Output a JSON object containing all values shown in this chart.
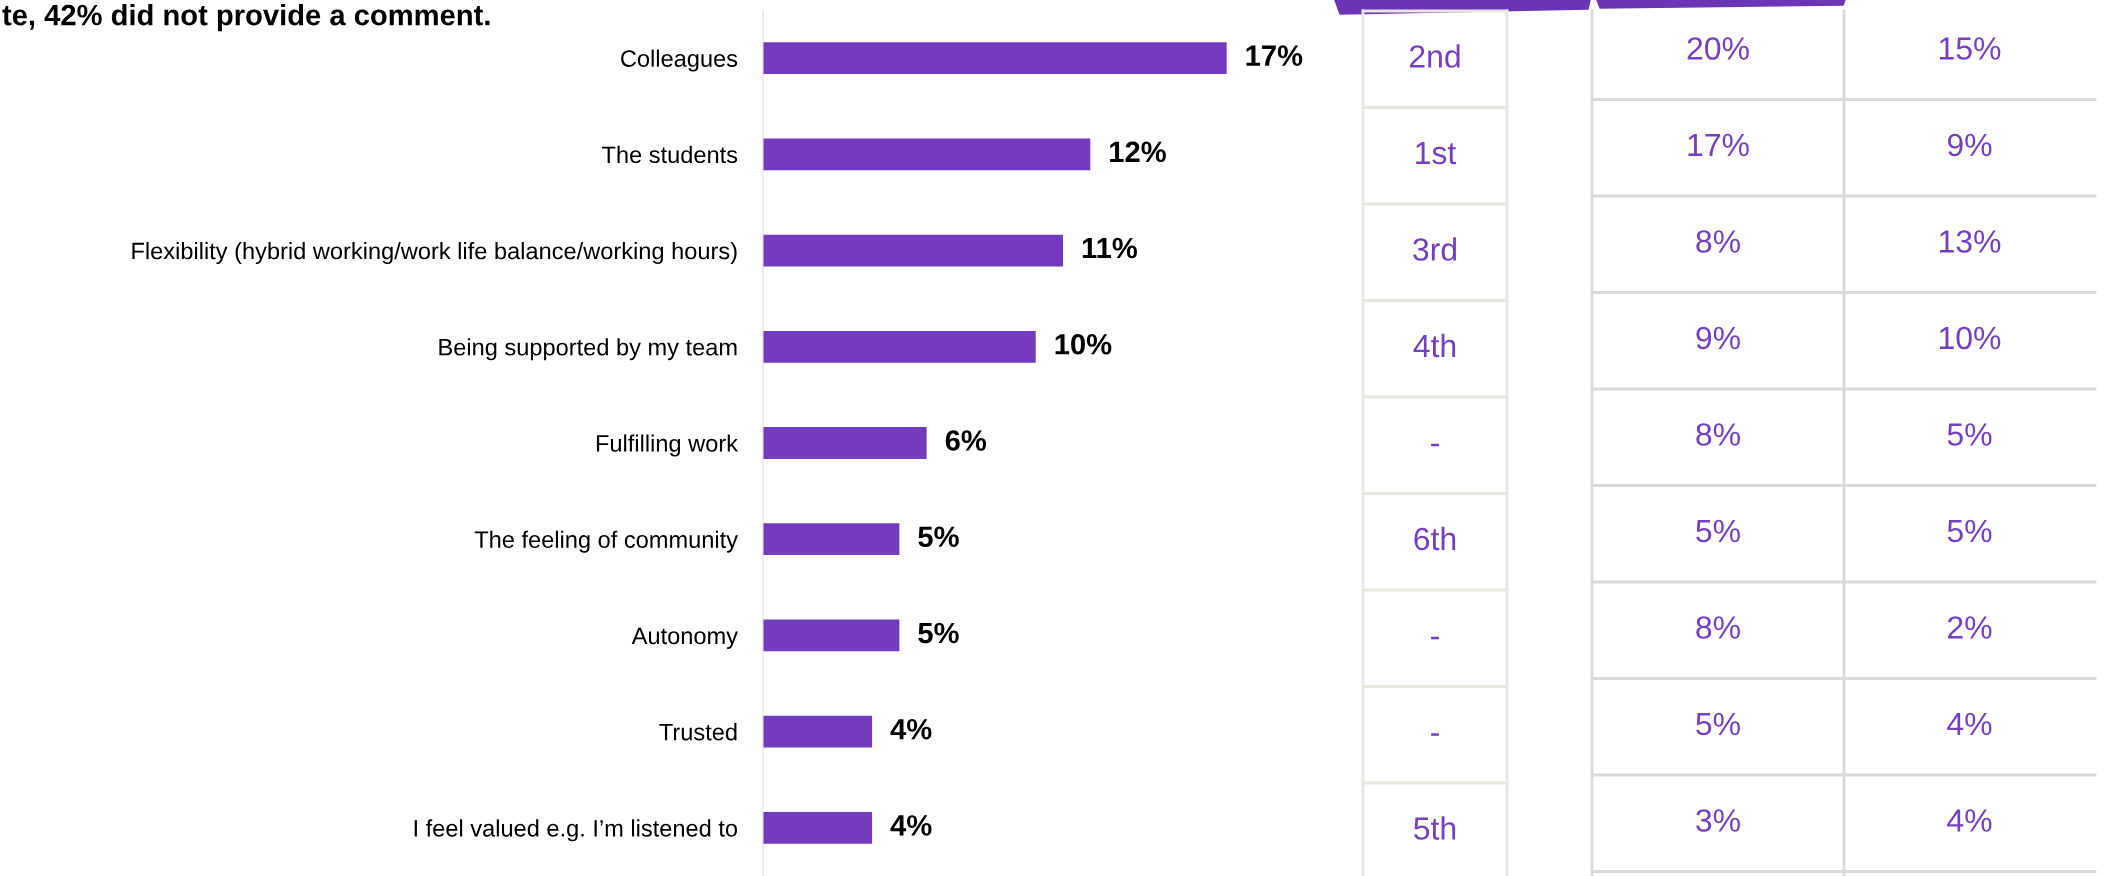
{
  "chart_data": [
    {
      "type": "bar",
      "orientation": "horizontal",
      "title": "te, 42% did not provide a comment.",
      "categories": [
        "Colleagues",
        "The students",
        "Flexibility (hybrid working/work life balance/working hours)",
        "Being supported by my team",
        "Fulfilling work",
        "The feeling of community",
        "Autonomy",
        "Trusted",
        "I feel valued e.g. I’m listened to"
      ],
      "values": [
        17,
        12,
        11,
        10,
        6,
        5,
        5,
        4,
        4
      ],
      "value_labels": [
        "17%",
        "12%",
        "11%",
        "10%",
        "6%",
        "5%",
        "5%",
        "4%",
        "4%"
      ],
      "color": "#743abd",
      "xlim": [
        0,
        22
      ],
      "tick_labels": "y",
      "grid": false,
      "legend": false
    },
    {
      "type": "other",
      "annotations": [
        "2nd",
        "20%",
        "15%",
        "1st",
        "17%",
        "9%",
        "3rd",
        "8%",
        "13%",
        "4th",
        "9%",
        "10%",
        "-",
        "8%",
        "5%",
        "6th",
        "5%",
        "5%",
        "-",
        "8%",
        "2%",
        "-",
        "5%",
        "4%",
        "5th",
        "3%",
        "4%"
      ]
    }
  ]
}
